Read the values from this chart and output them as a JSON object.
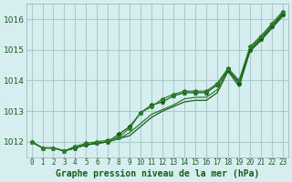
{
  "title": "Graphe pression niveau de la mer (hPa)",
  "x_labels": [
    "0",
    "1",
    "2",
    "3",
    "4",
    "5",
    "6",
    "7",
    "8",
    "9",
    "10",
    "11",
    "12",
    "13",
    "14",
    "15",
    "16",
    "17",
    "18",
    "19",
    "20",
    "21",
    "22",
    "23"
  ],
  "x_values": [
    0,
    1,
    2,
    3,
    4,
    5,
    6,
    7,
    8,
    9,
    10,
    11,
    12,
    13,
    14,
    15,
    16,
    17,
    18,
    19,
    20,
    21,
    22,
    23
  ],
  "ylim": [
    1011.5,
    1016.5
  ],
  "yticks": [
    1012,
    1013,
    1014,
    1015,
    1016
  ],
  "background_color": "#d6eef0",
  "grid_color": "#aacccc",
  "line_color": "#1a5c1a",
  "line_color2": "#2a7c2a",
  "series1": [
    1012.0,
    1011.8,
    1011.8,
    1011.7,
    1011.8,
    1011.9,
    1011.95,
    1012.0,
    1012.1,
    1012.2,
    1012.5,
    1012.8,
    1013.0,
    1013.15,
    1013.3,
    1013.35,
    1013.35,
    1013.6,
    1014.3,
    1013.8,
    1014.95,
    1015.3,
    1015.7,
    1016.1
  ],
  "series2": [
    1012.0,
    1011.8,
    1011.8,
    1011.7,
    1011.8,
    1011.9,
    1011.95,
    1012.0,
    1012.25,
    1012.5,
    1012.95,
    1013.2,
    1013.3,
    1013.5,
    1013.6,
    1013.6,
    1013.6,
    1013.85,
    1014.35,
    1013.9,
    1015.0,
    1015.35,
    1015.75,
    1016.15
  ],
  "series3": [
    1012.0,
    1011.8,
    1011.8,
    1011.7,
    1011.8,
    1011.9,
    1011.95,
    1012.0,
    1012.1,
    1012.3,
    1012.6,
    1012.9,
    1013.05,
    1013.2,
    1013.4,
    1013.45,
    1013.45,
    1013.7,
    1014.35,
    1013.95,
    1015.05,
    1015.4,
    1015.8,
    1016.2
  ],
  "series4": [
    1012.0,
    1011.8,
    1011.8,
    1011.7,
    1011.85,
    1011.95,
    1012.0,
    1012.05,
    1012.15,
    1012.45,
    1012.95,
    1013.15,
    1013.4,
    1013.55,
    1013.65,
    1013.65,
    1013.65,
    1013.9,
    1014.4,
    1014.0,
    1015.1,
    1015.45,
    1015.85,
    1016.25
  ]
}
